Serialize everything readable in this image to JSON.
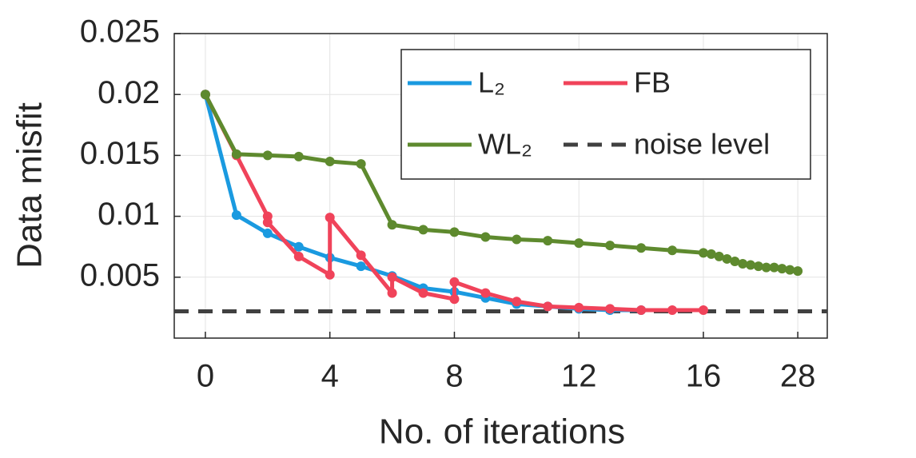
{
  "chart_data": {
    "type": "line",
    "xlabel": "No. of iterations",
    "ylabel": "Data misfit",
    "xlim": [
      -1,
      31.75
    ],
    "x_axis_break": 16,
    "xticks": [
      0,
      4,
      8,
      12,
      16,
      28
    ],
    "ylim": [
      0,
      0.025
    ],
    "yticks": [
      0.005,
      0.01,
      0.015,
      0.02,
      0.025
    ],
    "grid": true,
    "legend_position": "upper right",
    "legend_columns": 2,
    "series": [
      {
        "name": "L₂",
        "color": "#1a9ae0",
        "x": [
          0,
          1,
          2,
          3,
          4,
          5,
          6,
          7,
          8,
          9,
          10,
          11,
          12,
          13,
          14
        ],
        "values": [
          0.02,
          0.0101,
          0.0086,
          0.0075,
          0.0066,
          0.0059,
          0.0051,
          0.0041,
          0.0038,
          0.0033,
          0.0028,
          0.0026,
          0.0024,
          0.0023,
          0.0023
        ]
      },
      {
        "name": "FB",
        "color": "#f0435a",
        "x": [
          0,
          1,
          2,
          2,
          3,
          4,
          4,
          5,
          6,
          6,
          7,
          8,
          8,
          9,
          10,
          11,
          12,
          13,
          14,
          15,
          16
        ],
        "values": [
          0.02,
          0.015,
          0.01,
          0.0095,
          0.0067,
          0.0052,
          0.0099,
          0.0068,
          0.0037,
          0.005,
          0.0037,
          0.0032,
          0.0046,
          0.0037,
          0.003,
          0.0026,
          0.0025,
          0.0024,
          0.0023,
          0.0023,
          0.0023
        ]
      },
      {
        "name": "WL₂",
        "color": "#5e8a2e",
        "x": [
          0,
          1,
          2,
          3,
          4,
          5,
          6,
          7,
          8,
          9,
          10,
          11,
          12,
          13,
          14,
          15,
          16,
          17,
          18,
          19,
          20,
          21,
          22,
          23,
          24,
          25,
          26,
          27,
          28
        ],
        "values": [
          0.02,
          0.0151,
          0.015,
          0.0149,
          0.0145,
          0.0143,
          0.0093,
          0.0089,
          0.0087,
          0.0083,
          0.0081,
          0.008,
          0.0078,
          0.0076,
          0.0074,
          0.0072,
          0.007,
          0.0069,
          0.0067,
          0.0065,
          0.0063,
          0.0061,
          0.006,
          0.0059,
          0.0058,
          0.0058,
          0.0057,
          0.0056,
          0.0055
        ]
      }
    ],
    "reference_lines": [
      {
        "name": "noise level",
        "value": 0.0022,
        "color": "#404040",
        "dashed": true
      }
    ]
  }
}
